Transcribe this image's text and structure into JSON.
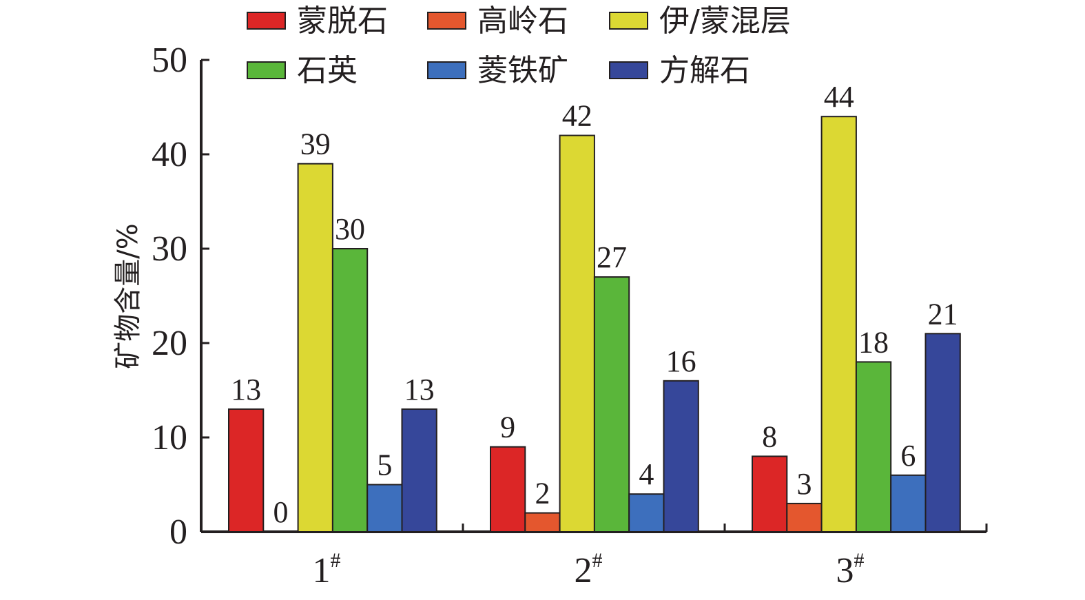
{
  "chart_data": {
    "type": "bar",
    "title": "",
    "ylabel": "矿物含量/%",
    "xlabel": "",
    "ylim": [
      0,
      50
    ],
    "yticks": [
      0,
      10,
      20,
      30,
      40,
      50
    ],
    "categories": [
      {
        "base": "1",
        "sup": "#"
      },
      {
        "base": "2",
        "sup": "#"
      },
      {
        "base": "3",
        "sup": "#"
      }
    ],
    "series": [
      {
        "name": "蒙脱石",
        "color": "#dc2626",
        "values": [
          13,
          9,
          8
        ]
      },
      {
        "name": "高岭石",
        "color": "#e4572e",
        "values": [
          0,
          2,
          3
        ]
      },
      {
        "name": "伊/蒙混层",
        "color": "#dcd833",
        "values": [
          39,
          42,
          44
        ]
      },
      {
        "name": "石英",
        "color": "#5ab63a",
        "values": [
          30,
          27,
          18
        ]
      },
      {
        "name": "菱铁矿",
        "color": "#3d6fbd",
        "values": [
          5,
          4,
          6
        ]
      },
      {
        "name": "方解石",
        "color": "#36479a",
        "values": [
          13,
          16,
          21
        ]
      }
    ],
    "legend_position": "top",
    "grid": false
  }
}
